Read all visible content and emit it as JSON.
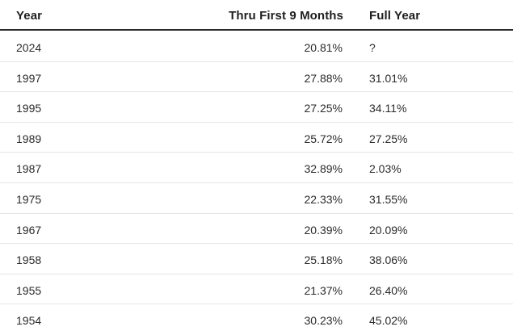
{
  "table": {
    "headers": {
      "year": "Year",
      "nine_months": "Thru First 9 Months",
      "full_year": "Full Year"
    },
    "rows": [
      {
        "year": "2024",
        "nine_months": "20.81%",
        "full_year": "?"
      },
      {
        "year": "1997",
        "nine_months": "27.88%",
        "full_year": "31.01%"
      },
      {
        "year": "1995",
        "nine_months": "27.25%",
        "full_year": "34.11%"
      },
      {
        "year": "1989",
        "nine_months": "25.72%",
        "full_year": "27.25%"
      },
      {
        "year": "1987",
        "nine_months": "32.89%",
        "full_year": "2.03%"
      },
      {
        "year": "1975",
        "nine_months": "22.33%",
        "full_year": "31.55%"
      },
      {
        "year": "1967",
        "nine_months": "20.39%",
        "full_year": "20.09%"
      },
      {
        "year": "1958",
        "nine_months": "25.18%",
        "full_year": "38.06%"
      },
      {
        "year": "1955",
        "nine_months": "21.37%",
        "full_year": "26.40%"
      },
      {
        "year": "1954",
        "nine_months": "30.23%",
        "full_year": "45.02%"
      }
    ]
  }
}
